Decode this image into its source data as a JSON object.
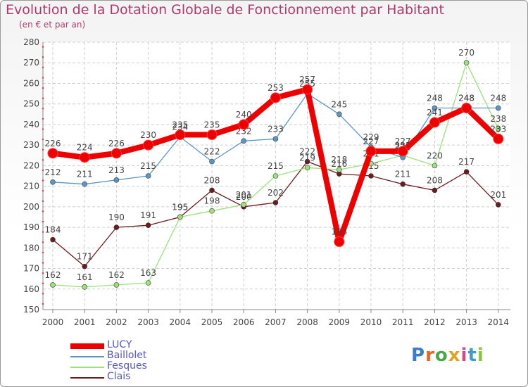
{
  "header": {
    "title": "Evolution de la Dotation Globale de Fonctionnement par Habitant",
    "subtitle": "(en € et par an)"
  },
  "logo": {
    "text": "Proxiti",
    "colors": [
      "#3a7cc6",
      "#e2652a",
      "#4aa84a",
      "#e2a324",
      "#d24a8a",
      "#3a9fd0",
      "#8bc43f"
    ]
  },
  "chart_data": {
    "type": "line",
    "title": "Evolution de la Dotation Globale de Fonctionnement par Habitant",
    "subtitle": "(en € et par an)",
    "xlabel": "",
    "ylabel": "",
    "ylim": [
      150,
      280
    ],
    "ytick_step": 10,
    "grid": true,
    "legend_position": "bottom-left",
    "categories": [
      "2000",
      "2001",
      "2002",
      "2003",
      "2004",
      "2005",
      "2006",
      "2007",
      "2008",
      "2009",
      "2010",
      "2011",
      "2012",
      "2013",
      "2014"
    ],
    "series": [
      {
        "name": "Clais",
        "color": "#6b1c1c",
        "values": [
          184,
          171,
          190,
          191,
          195,
          208,
          200,
          202,
          222,
          216,
          215,
          211,
          208,
          217,
          201
        ]
      },
      {
        "name": "Fesques",
        "color": "#9be27a",
        "values": [
          162,
          161,
          162,
          163,
          195,
          198,
          201,
          215,
          219,
          218,
          221,
          225,
          220,
          270,
          238
        ]
      },
      {
        "name": "Baillolet",
        "color": "#5a96c8",
        "values": [
          212,
          211,
          213,
          215,
          234,
          222,
          232,
          233,
          255,
          245,
          229,
          224,
          248,
          248,
          248
        ]
      },
      {
        "name": "LUCY",
        "color": "#ee0000",
        "values": [
          226,
          224,
          226,
          230,
          235,
          235,
          240,
          253,
          257,
          183,
          227,
          227,
          241,
          248,
          233
        ]
      }
    ],
    "legend": [
      "LUCY",
      "Baillolet",
      "Fesques",
      "Clais"
    ]
  }
}
